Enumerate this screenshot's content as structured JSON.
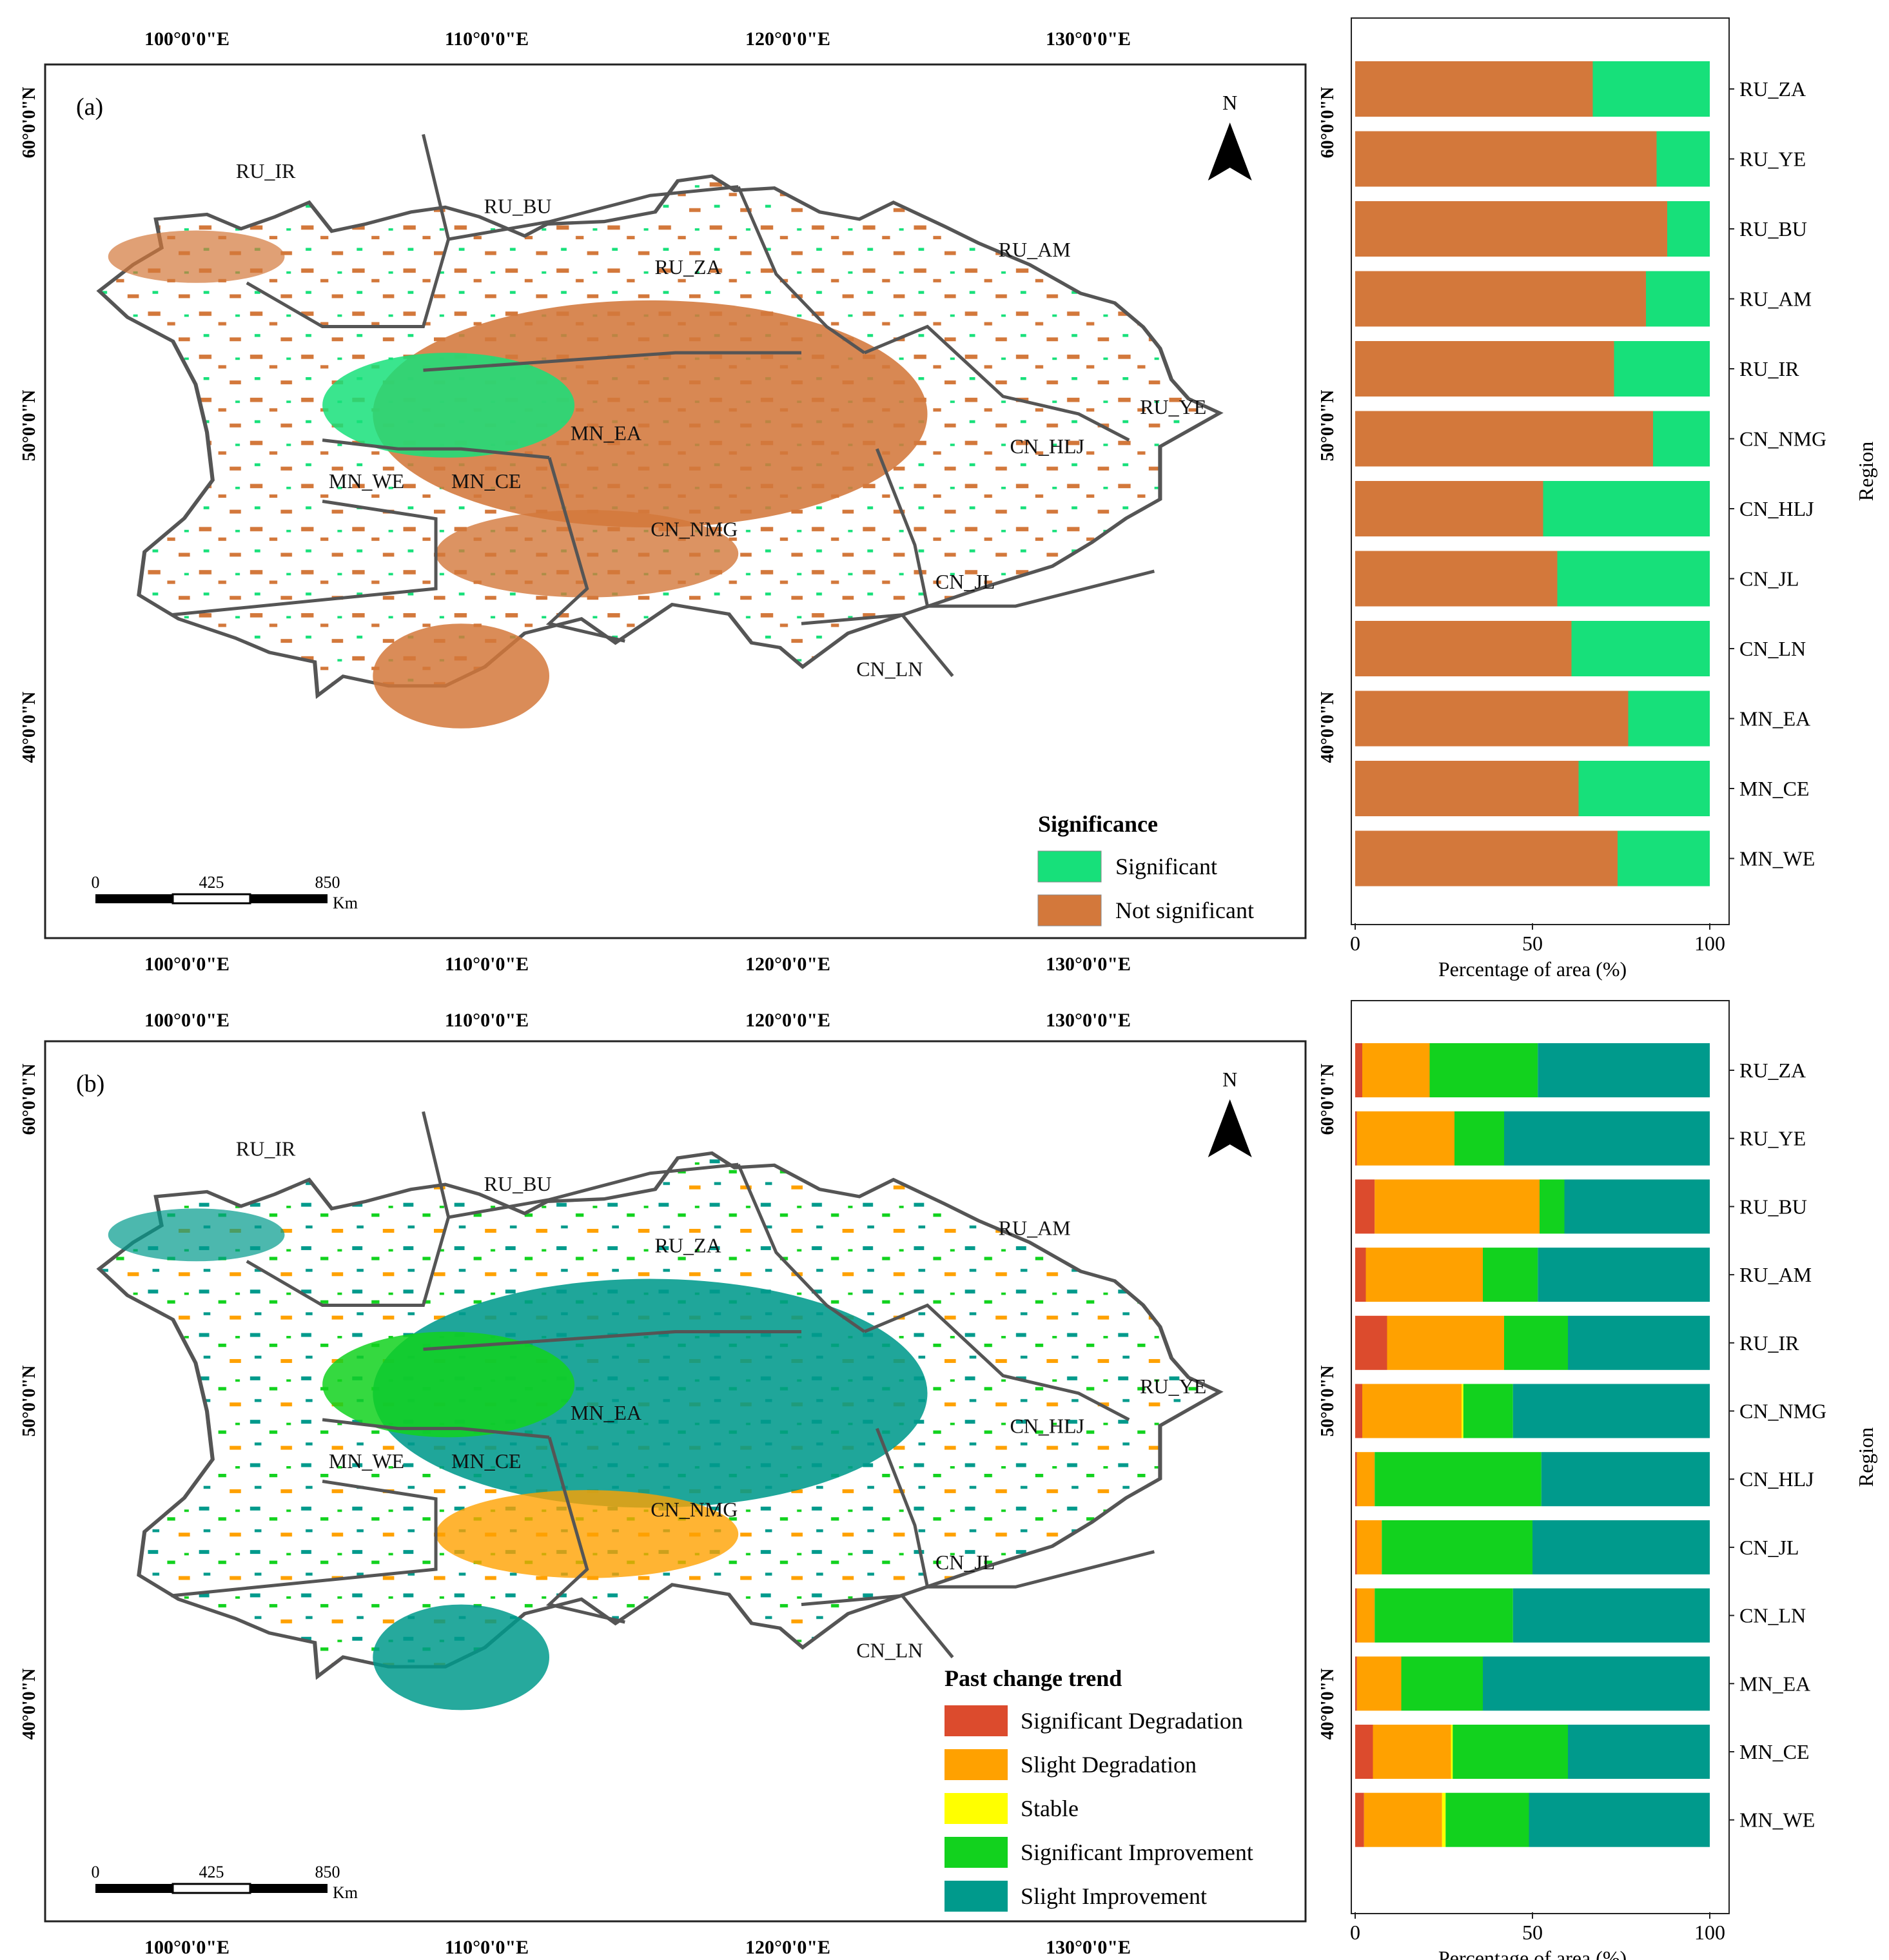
{
  "panels": [
    {
      "id": "a",
      "label": "(a)",
      "lon_ticks": [
        "100°0'0\"E",
        "110°0'0\"E",
        "120°0'0\"E",
        "130°0'0\"E"
      ],
      "lat_ticks": [
        "60°0'0\"N",
        "50°0'0\"N",
        "40°0'0\"N"
      ],
      "north_label": "N",
      "scale": {
        "ticks": [
          "0",
          "425",
          "850"
        ],
        "unit": "Km"
      },
      "legend": {
        "title": "Significance",
        "items": [
          {
            "label": "Significant",
            "color": "#17e07a"
          },
          {
            "label": "Not significant",
            "color": "#d3783b"
          }
        ]
      },
      "regions": [
        "RU_IR",
        "RU_BU",
        "RU_ZA",
        "RU_AM",
        "RU_YE",
        "MN_EA",
        "MN_WE",
        "MN_CE",
        "CN_NMG",
        "CN_HLJ",
        "CN_JL",
        "CN_LN"
      ]
    },
    {
      "id": "b",
      "label": "(b)",
      "lon_ticks": [
        "100°0'0\"E",
        "110°0'0\"E",
        "120°0'0\"E",
        "130°0'0\"E"
      ],
      "lat_ticks": [
        "60°0'0\"N",
        "50°0'0\"N",
        "40°0'0\"N"
      ],
      "north_label": "N",
      "scale": {
        "ticks": [
          "0",
          "425",
          "850"
        ],
        "unit": "Km"
      },
      "legend": {
        "title": "Past change trend",
        "items": [
          {
            "label": "Significant Degradation",
            "color": "#dc4b2d"
          },
          {
            "label": "Slight Degradation",
            "color": "#ffa100"
          },
          {
            "label": "Stable",
            "color": "#ffff00"
          },
          {
            "label": "Significant Improvement",
            "color": "#12d21e"
          },
          {
            "label": "Slight Improvement",
            "color": "#009a8c"
          }
        ]
      },
      "regions": [
        "RU_IR",
        "RU_BU",
        "RU_ZA",
        "RU_AM",
        "RU_YE",
        "MN_EA",
        "MN_WE",
        "MN_CE",
        "CN_NMG",
        "CN_HLJ",
        "CN_JL",
        "CN_LN"
      ]
    }
  ],
  "chart_data": [
    {
      "type": "bar",
      "orientation": "horizontal-stacked",
      "categories": [
        "RU_ZA",
        "RU_YE",
        "RU_BU",
        "RU_AM",
        "RU_IR",
        "CN_NMG",
        "CN_HLJ",
        "CN_JL",
        "CN_LN",
        "MN_EA",
        "MN_CE",
        "MN_WE"
      ],
      "series": [
        {
          "name": "Not significant",
          "color": "#d3783b",
          "values": [
            67,
            85,
            88,
            82,
            73,
            84,
            53,
            57,
            61,
            77,
            63,
            74
          ]
        },
        {
          "name": "Significant",
          "color": "#17e07a",
          "values": [
            33,
            15,
            12,
            18,
            27,
            16,
            47,
            43,
            39,
            23,
            37,
            26
          ]
        }
      ],
      "xlabel": "Percentage of area (%)",
      "ylabel": "Region",
      "xticks": [
        "0",
        "50",
        "100"
      ],
      "xlim": [
        0,
        100
      ]
    },
    {
      "type": "bar",
      "orientation": "horizontal-stacked",
      "categories": [
        "RU_ZA",
        "RU_YE",
        "RU_BU",
        "RU_AM",
        "RU_IR",
        "CN_NMG",
        "CN_HLJ",
        "CN_JL",
        "CN_LN",
        "MN_EA",
        "MN_CE",
        "MN_WE"
      ],
      "series": [
        {
          "name": "Significant Degradation",
          "color": "#dc4b2d",
          "values": [
            2,
            0.5,
            5.5,
            3,
            9,
            2,
            0.5,
            0.5,
            0.5,
            0.5,
            5,
            2.5
          ]
        },
        {
          "name": "Slight Degradation",
          "color": "#ffa100",
          "values": [
            19,
            27.5,
            46.5,
            33,
            33,
            28,
            5,
            7,
            5,
            12.5,
            22,
            22
          ]
        },
        {
          "name": "Stable",
          "color": "#ffff00",
          "values": [
            0,
            0,
            0,
            0,
            0,
            0.5,
            0,
            0,
            0,
            0,
            0.5,
            1
          ]
        },
        {
          "name": "Significant Improvement",
          "color": "#12d21e",
          "values": [
            30.5,
            14,
            7,
            15.5,
            18,
            14,
            47,
            42.5,
            39,
            23,
            32.5,
            23.5
          ]
        },
        {
          "name": "Slight Improvement",
          "color": "#009a8c",
          "values": [
            48.5,
            58,
            41,
            48.5,
            40,
            55.5,
            47.5,
            50,
            55.5,
            64,
            40,
            51
          ]
        }
      ],
      "xlabel": "Percentage of area (%)",
      "ylabel": "Region",
      "xticks": [
        "0",
        "50",
        "100"
      ],
      "xlim": [
        0,
        100
      ]
    }
  ]
}
